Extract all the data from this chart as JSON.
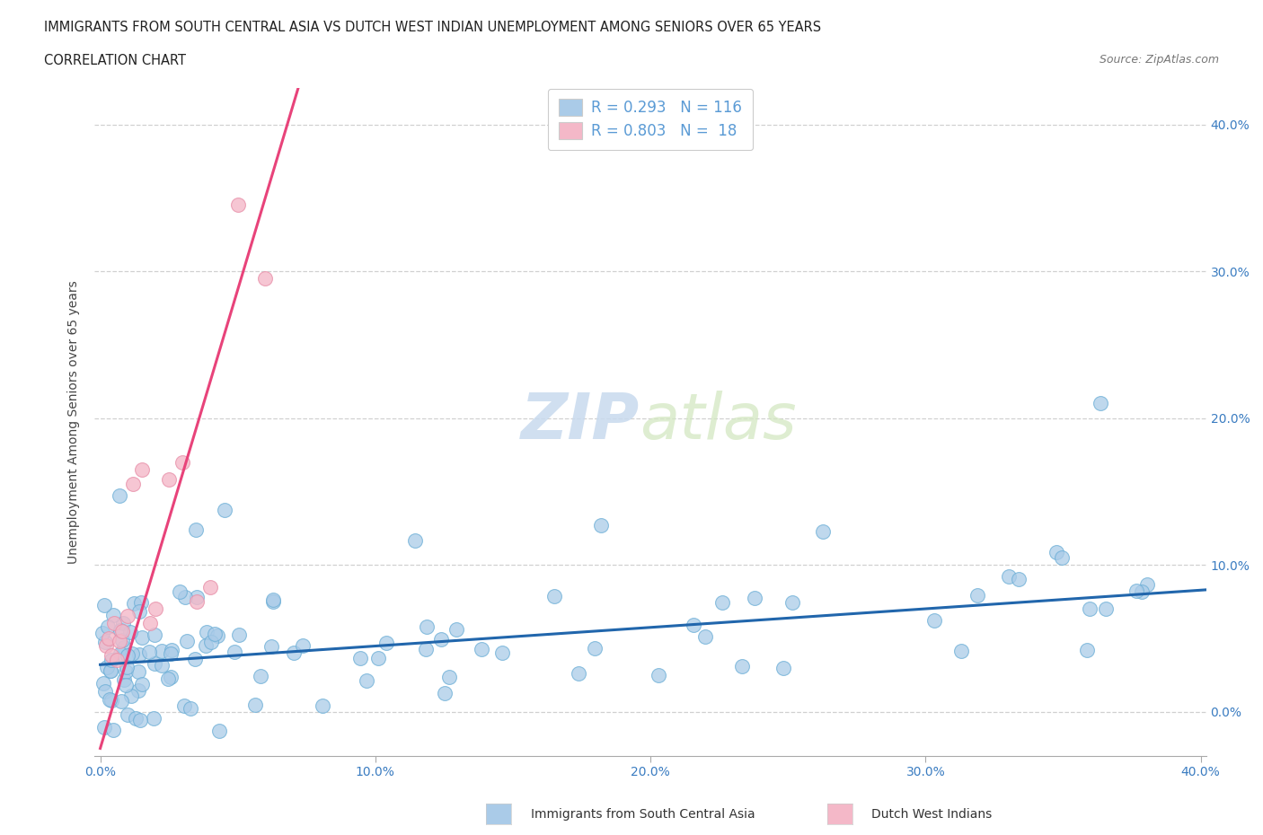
{
  "title_line1": "IMMIGRANTS FROM SOUTH CENTRAL ASIA VS DUTCH WEST INDIAN UNEMPLOYMENT AMONG SENIORS OVER 65 YEARS",
  "title_line2": "CORRELATION CHART",
  "source_text": "Source: ZipAtlas.com",
  "ylabel": "Unemployment Among Seniors over 65 years",
  "xlim": [
    -0.002,
    0.402
  ],
  "ylim": [
    -0.03,
    0.425
  ],
  "xticks": [
    0.0,
    0.1,
    0.2,
    0.3,
    0.4
  ],
  "xtick_labels": [
    "0.0%",
    "10.0%",
    "20.0%",
    "30.0%",
    "40.0%"
  ],
  "yticks": [
    0.0,
    0.1,
    0.2,
    0.3,
    0.4
  ],
  "ytick_labels_right": [
    "0.0%",
    "10.0%",
    "20.0%",
    "30.0%",
    "40.0%"
  ],
  "blue_color": "#aacbe8",
  "blue_edge_color": "#6baed6",
  "pink_color": "#f4b8c8",
  "pink_edge_color": "#e891aa",
  "blue_line_color": "#2166ac",
  "pink_line_color": "#e8437a",
  "legend_label1": "R = 0.293   N = 116",
  "legend_label2": "R = 0.803   N =  18",
  "legend_color1": "#5b9bd5",
  "grid_color": "#d0d0d0",
  "watermark_zip": "ZIP",
  "watermark_atlas": "atlas",
  "background_color": "#ffffff",
  "blue_trend_x0": 0.0,
  "blue_trend_x1": 0.402,
  "blue_trend_y0": 0.032,
  "blue_trend_y1": 0.083,
  "pink_trend_x0": 0.0,
  "pink_trend_x1": 0.072,
  "pink_trend_y0": -0.025,
  "pink_trend_y1": 0.425
}
